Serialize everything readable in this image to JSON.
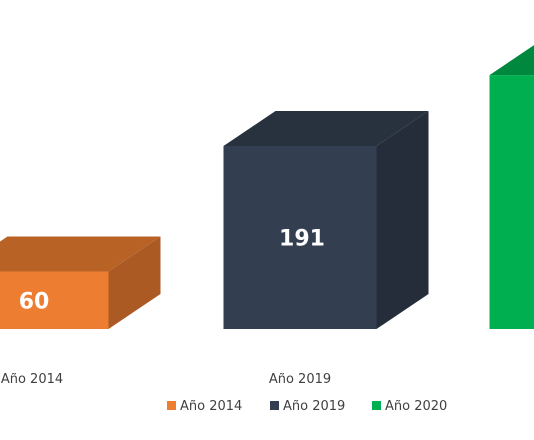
{
  "chart_data": {
    "type": "bar",
    "style": "3d-column",
    "categories": [
      "Año 2014",
      "Año 2019",
      "Año 2020"
    ],
    "values": [
      60,
      191,
      265
    ],
    "data_labels": [
      "60",
      "191",
      ""
    ],
    "colors": [
      "#ed7d31",
      "#333f50",
      "#00b050"
    ],
    "legend": {
      "position": "bottom",
      "entries": [
        "Año 2014",
        "Año 2019",
        "Año 2020"
      ]
    },
    "grid": false,
    "title": "",
    "xlabel": "",
    "ylabel": ""
  }
}
